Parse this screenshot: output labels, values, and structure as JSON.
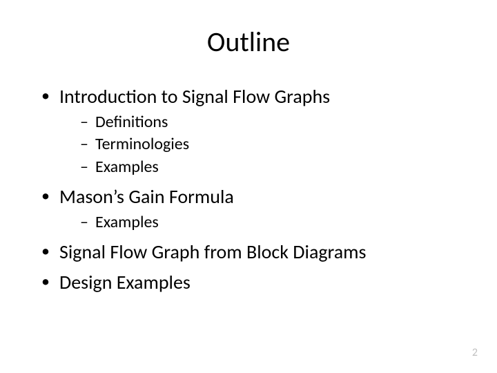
{
  "slide": {
    "title": "Outline",
    "page_number": "2",
    "bullets": [
      {
        "text": "Introduction to Signal Flow Graphs",
        "children": [
          {
            "text": "Definitions"
          },
          {
            "text": "Terminologies"
          },
          {
            "text": "Examples"
          }
        ]
      },
      {
        "text": "Mason’s Gain Formula",
        "children": [
          {
            "text": "Examples"
          }
        ]
      },
      {
        "text": "Signal Flow Graph from Block Diagrams",
        "children": []
      },
      {
        "text": "Design Examples",
        "children": []
      }
    ]
  },
  "style": {
    "background_color": "#ffffff",
    "text_color": "#000000",
    "page_number_color": "#bfbfbf",
    "title_fontsize": 40,
    "level1_fontsize": 28,
    "level2_fontsize": 24,
    "font_family": "Calibri"
  }
}
